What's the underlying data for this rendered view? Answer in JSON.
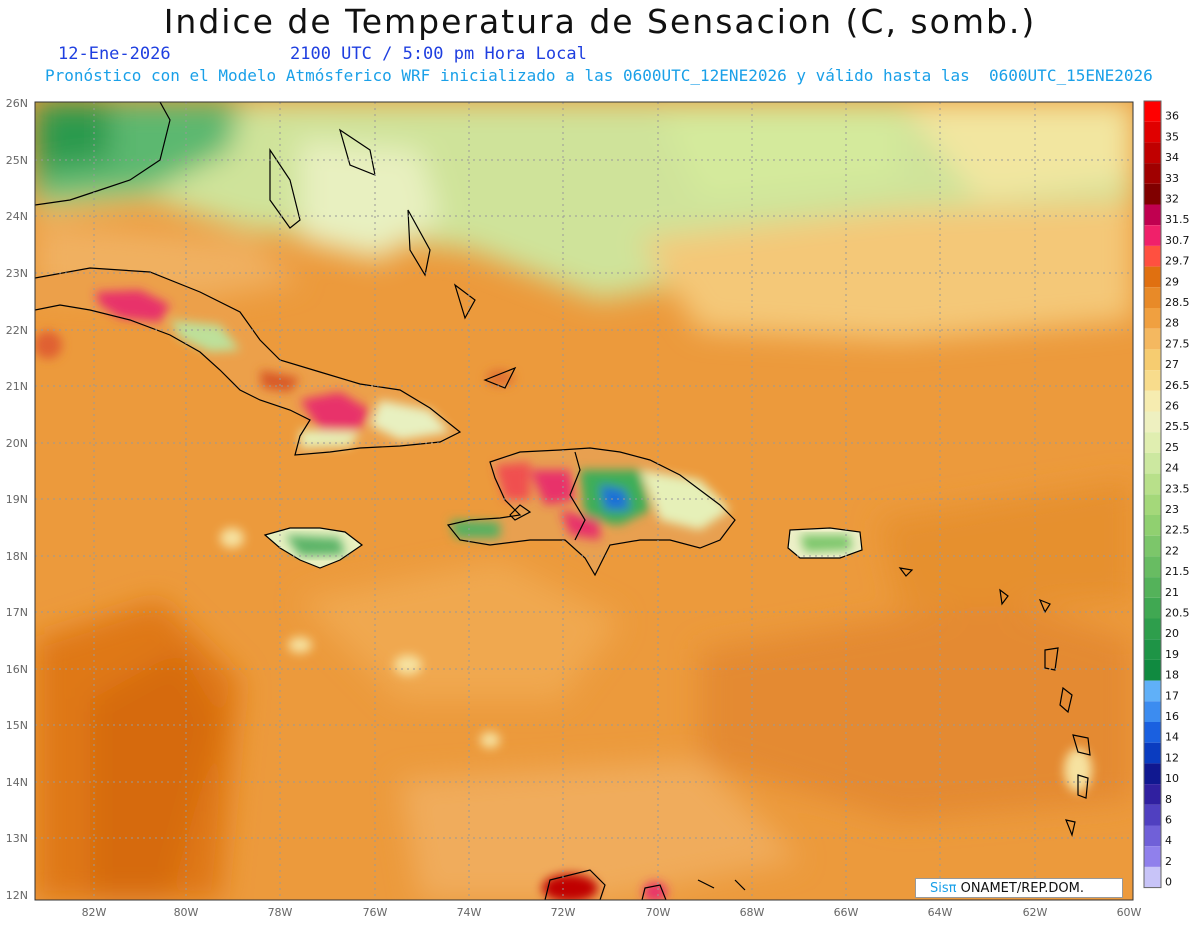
{
  "header": {
    "title": "Indice de Temperatura de Sensacion (C, somb.)",
    "date": "12-Ene-2026",
    "time": "2100 UTC / 5:00 pm Hora Local",
    "forecast": "Pronóstico con el Modelo Atmósferico WRF inicializado a las 0600UTC_12ENE2026 y válido hasta las  0600UTC_15ENE2026"
  },
  "map": {
    "lat_labels": [
      "26N",
      "25N",
      "24N",
      "23N",
      "22N",
      "21N",
      "20N",
      "19N",
      "18N",
      "17N",
      "16N",
      "15N",
      "14N",
      "13N",
      "12N"
    ],
    "lon_labels": [
      "82W",
      "80W",
      "78W",
      "76W",
      "74W",
      "72W",
      "70W",
      "68W",
      "66W",
      "64W",
      "62W",
      "60W"
    ]
  },
  "colorbar": {
    "labels": [
      "36",
      "35",
      "34",
      "33",
      "32",
      "31.5",
      "30.7",
      "29.7",
      "29",
      "28.5",
      "28",
      "27.5",
      "27",
      "26.5",
      "26",
      "25.5",
      "25",
      "24",
      "23.5",
      "23",
      "22.5",
      "22",
      "21.5",
      "21",
      "20.5",
      "20",
      "19",
      "18",
      "17",
      "16",
      "14",
      "12",
      "10",
      "8",
      "6",
      "4",
      "2",
      "0"
    ],
    "colors": [
      "#ff0000",
      "#e00000",
      "#c00000",
      "#a00000",
      "#800000",
      "#c00050",
      "#f0206a",
      "#ff5040",
      "#e07010",
      "#e88a28",
      "#f0a040",
      "#f4b860",
      "#f6cc70",
      "#f8dc8c",
      "#f6ecb0",
      "#eef0c0",
      "#e0eeb0",
      "#cce8a0",
      "#b8e08a",
      "#a4d87a",
      "#90d070",
      "#7cc66a",
      "#68bc62",
      "#54b25a",
      "#40a852",
      "#2e9e4c",
      "#1e9446",
      "#108a40",
      "#60b0f8",
      "#3c8cf0",
      "#1a60e0",
      "#0a3cc0",
      "#101890",
      "#3020a0",
      "#5040c0",
      "#7060d8",
      "#9080ec",
      "#c8c4f8"
    ]
  },
  "credit": {
    "brand": "Sisπ",
    "text": " ONAMET/REP.DOM."
  }
}
